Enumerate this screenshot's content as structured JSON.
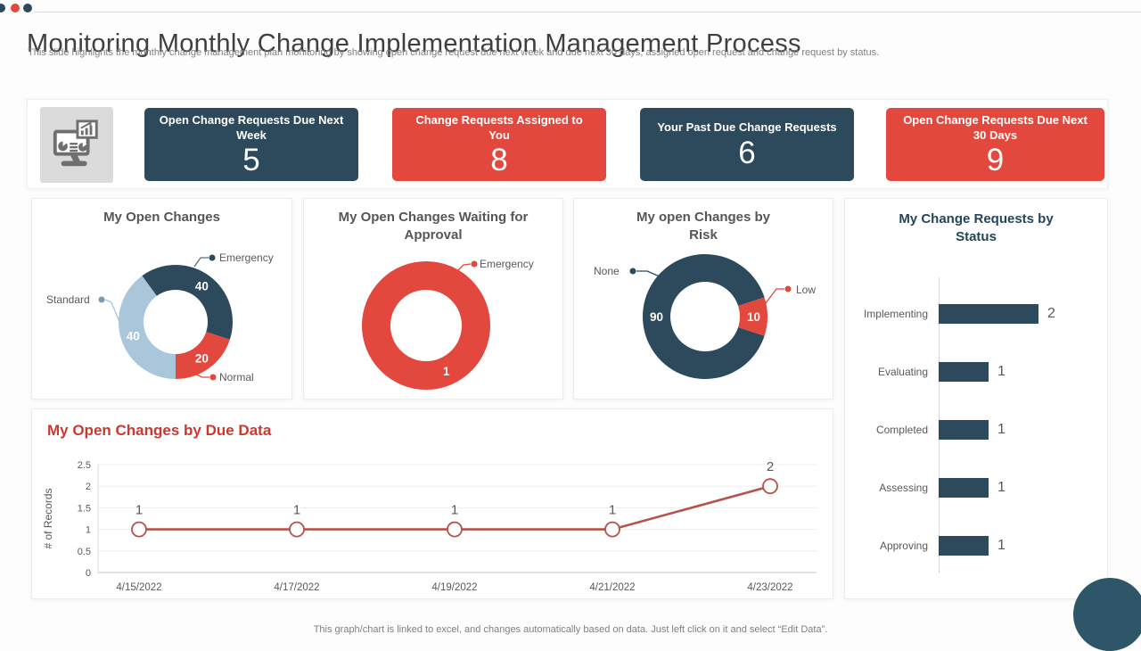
{
  "colors": {
    "navy": "#2c4a5b",
    "red": "#e2483d",
    "light-blue": "#a9c6db",
    "line-red": "#b5524b",
    "title-red": "#c9392f",
    "corner-navy": "#2e5568"
  },
  "header": {
    "title": "Monitoring Monthly Change Implementation Management Process",
    "subtitle": "This slide highlights the monthly change management plan monitoring by showing open change request due next week and due next 30 days, assigned open request and change request by status."
  },
  "kpis": [
    {
      "label": "Open Change Requests Due Next Week",
      "value": "5",
      "accent": "navy"
    },
    {
      "label": "Change Requests Assigned to You",
      "value": "8",
      "accent": "red"
    },
    {
      "label": "Your Past Due Change Requests",
      "value": "6",
      "accent": "navy"
    },
    {
      "label": "Open Change Requests Due Next 30 Days",
      "value": "9",
      "accent": "red"
    }
  ],
  "footer": "This graph/chart is linked to excel, and changes automatically based on data. Just left click on it and select “Edit Data”.",
  "chart_data": [
    {
      "type": "donut",
      "title": "My Open Changes",
      "start_angle": -36,
      "legend_position": "callouts",
      "slices": [
        {
          "label": "Emergency",
          "value": 40,
          "color": "#2c4a5b"
        },
        {
          "label": "Normal",
          "value": 20,
          "color": "#e2483d"
        },
        {
          "label": "Standard",
          "value": 40,
          "color": "#a9c6db"
        }
      ]
    },
    {
      "type": "donut",
      "title": "My Open Changes Waiting for Approval",
      "start_angle": -24,
      "legend_position": "callouts",
      "slices": [
        {
          "label": "Emergency",
          "value": 1,
          "color": "#e2483d"
        }
      ]
    },
    {
      "type": "donut",
      "title": "My open Changes by Risk",
      "start_angle": 108,
      "legend_position": "callouts",
      "slices": [
        {
          "label": "None",
          "value": 90,
          "color": "#2c4a5b"
        },
        {
          "label": "Low",
          "value": 10,
          "color": "#e2483d"
        }
      ]
    },
    {
      "type": "bar",
      "orientation": "horizontal",
      "title": "My Change Requests by Status",
      "categories": [
        "Implementing",
        "Evaluating",
        "Completed",
        "Assessing",
        "Approving"
      ],
      "values": [
        2,
        1,
        1,
        1,
        1
      ],
      "bar_color": "#2c4a5b",
      "xlim": [
        0,
        2.4
      ],
      "value_labels": true,
      "grid": false
    },
    {
      "type": "line",
      "title": "My Open Changes by Due Data",
      "x": [
        "4/15/2022",
        "4/17/2022",
        "4/19/2022",
        "4/21/2022",
        "4/23/2022"
      ],
      "values": [
        1,
        1,
        1,
        1,
        2
      ],
      "ylabel": "# of Records",
      "ylim": [
        0,
        2.5
      ],
      "yticks": [
        0,
        0.5,
        1,
        1.5,
        2,
        2.5
      ],
      "grid": true,
      "line_color": "#b5524b",
      "marker": "open-circle",
      "value_labels": true
    }
  ]
}
